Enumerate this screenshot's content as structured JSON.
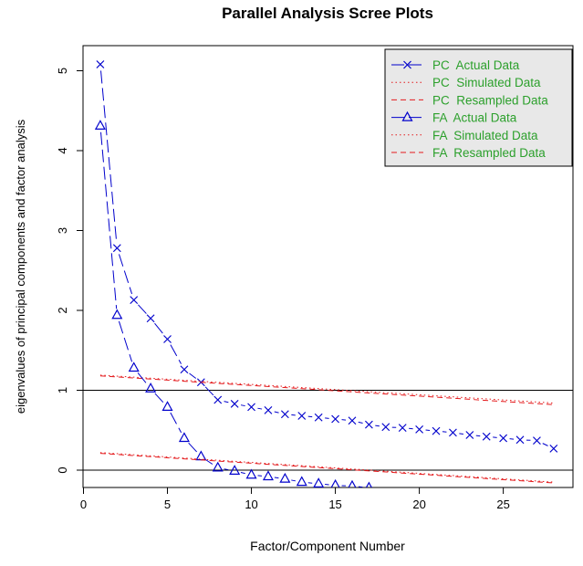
{
  "chart_data": {
    "type": "line",
    "title": "Parallel Analysis Scree Plots",
    "xlabel": "Factor/Component Number",
    "ylabel": "eigenvalues of principal components and factor analysis",
    "xlim": [
      0,
      29
    ],
    "ylim": [
      -0.2,
      5.3
    ],
    "x_ticks": [
      "0",
      "5",
      "10",
      "15",
      "20",
      "25"
    ],
    "y_ticks": [
      "0",
      "1",
      "2",
      "3",
      "4",
      "5"
    ],
    "reference_lines_y": [
      0,
      1
    ],
    "legend_position": "top-right",
    "colors": {
      "actual": "#0000cc",
      "simulated_resampled": "#e41a1c",
      "legend_text": "#2ca02c",
      "legend_background": "#e8e8e8",
      "reference_line": "#000000"
    },
    "series": [
      {
        "name": "PC  Actual Data",
        "marker": "x",
        "linestyle": "longdash",
        "x": [
          1,
          2,
          3,
          4,
          5,
          6,
          7,
          8,
          9,
          10,
          11,
          12,
          13,
          14,
          15,
          16,
          17,
          18,
          19,
          20,
          21,
          22,
          23,
          24,
          25,
          26,
          27,
          28
        ],
        "values": [
          5.08,
          2.78,
          2.13,
          1.9,
          1.64,
          1.26,
          1.1,
          0.88,
          0.83,
          0.79,
          0.75,
          0.7,
          0.68,
          0.66,
          0.64,
          0.62,
          0.57,
          0.54,
          0.53,
          0.51,
          0.49,
          0.47,
          0.44,
          0.42,
          0.4,
          0.38,
          0.37,
          0.27
        ]
      },
      {
        "name": "PC  Simulated Data",
        "marker": "none",
        "linestyle": "dotted",
        "x": [
          1,
          28
        ],
        "values": [
          1.19,
          0.84
        ]
      },
      {
        "name": "PC  Resampled Data",
        "marker": "none",
        "linestyle": "dashed",
        "x": [
          1,
          28
        ],
        "values": [
          1.18,
          0.82
        ]
      },
      {
        "name": "FA  Actual Data",
        "marker": "triangle",
        "linestyle": "longdash",
        "x": [
          1,
          2,
          3,
          4,
          5,
          6,
          7,
          8,
          9,
          10,
          11,
          12,
          13,
          14,
          15,
          16,
          17
        ],
        "values": [
          4.31,
          1.94,
          1.28,
          1.02,
          0.79,
          0.4,
          0.17,
          0.03,
          -0.01,
          -0.06,
          -0.08,
          -0.11,
          -0.15,
          -0.17,
          -0.19,
          -0.2,
          -0.22
        ]
      },
      {
        "name": "FA  Simulated Data",
        "marker": "none",
        "linestyle": "dotted",
        "x": [
          1,
          28
        ],
        "values": [
          0.22,
          -0.15
        ]
      },
      {
        "name": "FA  Resampled Data",
        "marker": "none",
        "linestyle": "dashed",
        "x": [
          1,
          28
        ],
        "values": [
          0.21,
          -0.16
        ]
      }
    ]
  }
}
